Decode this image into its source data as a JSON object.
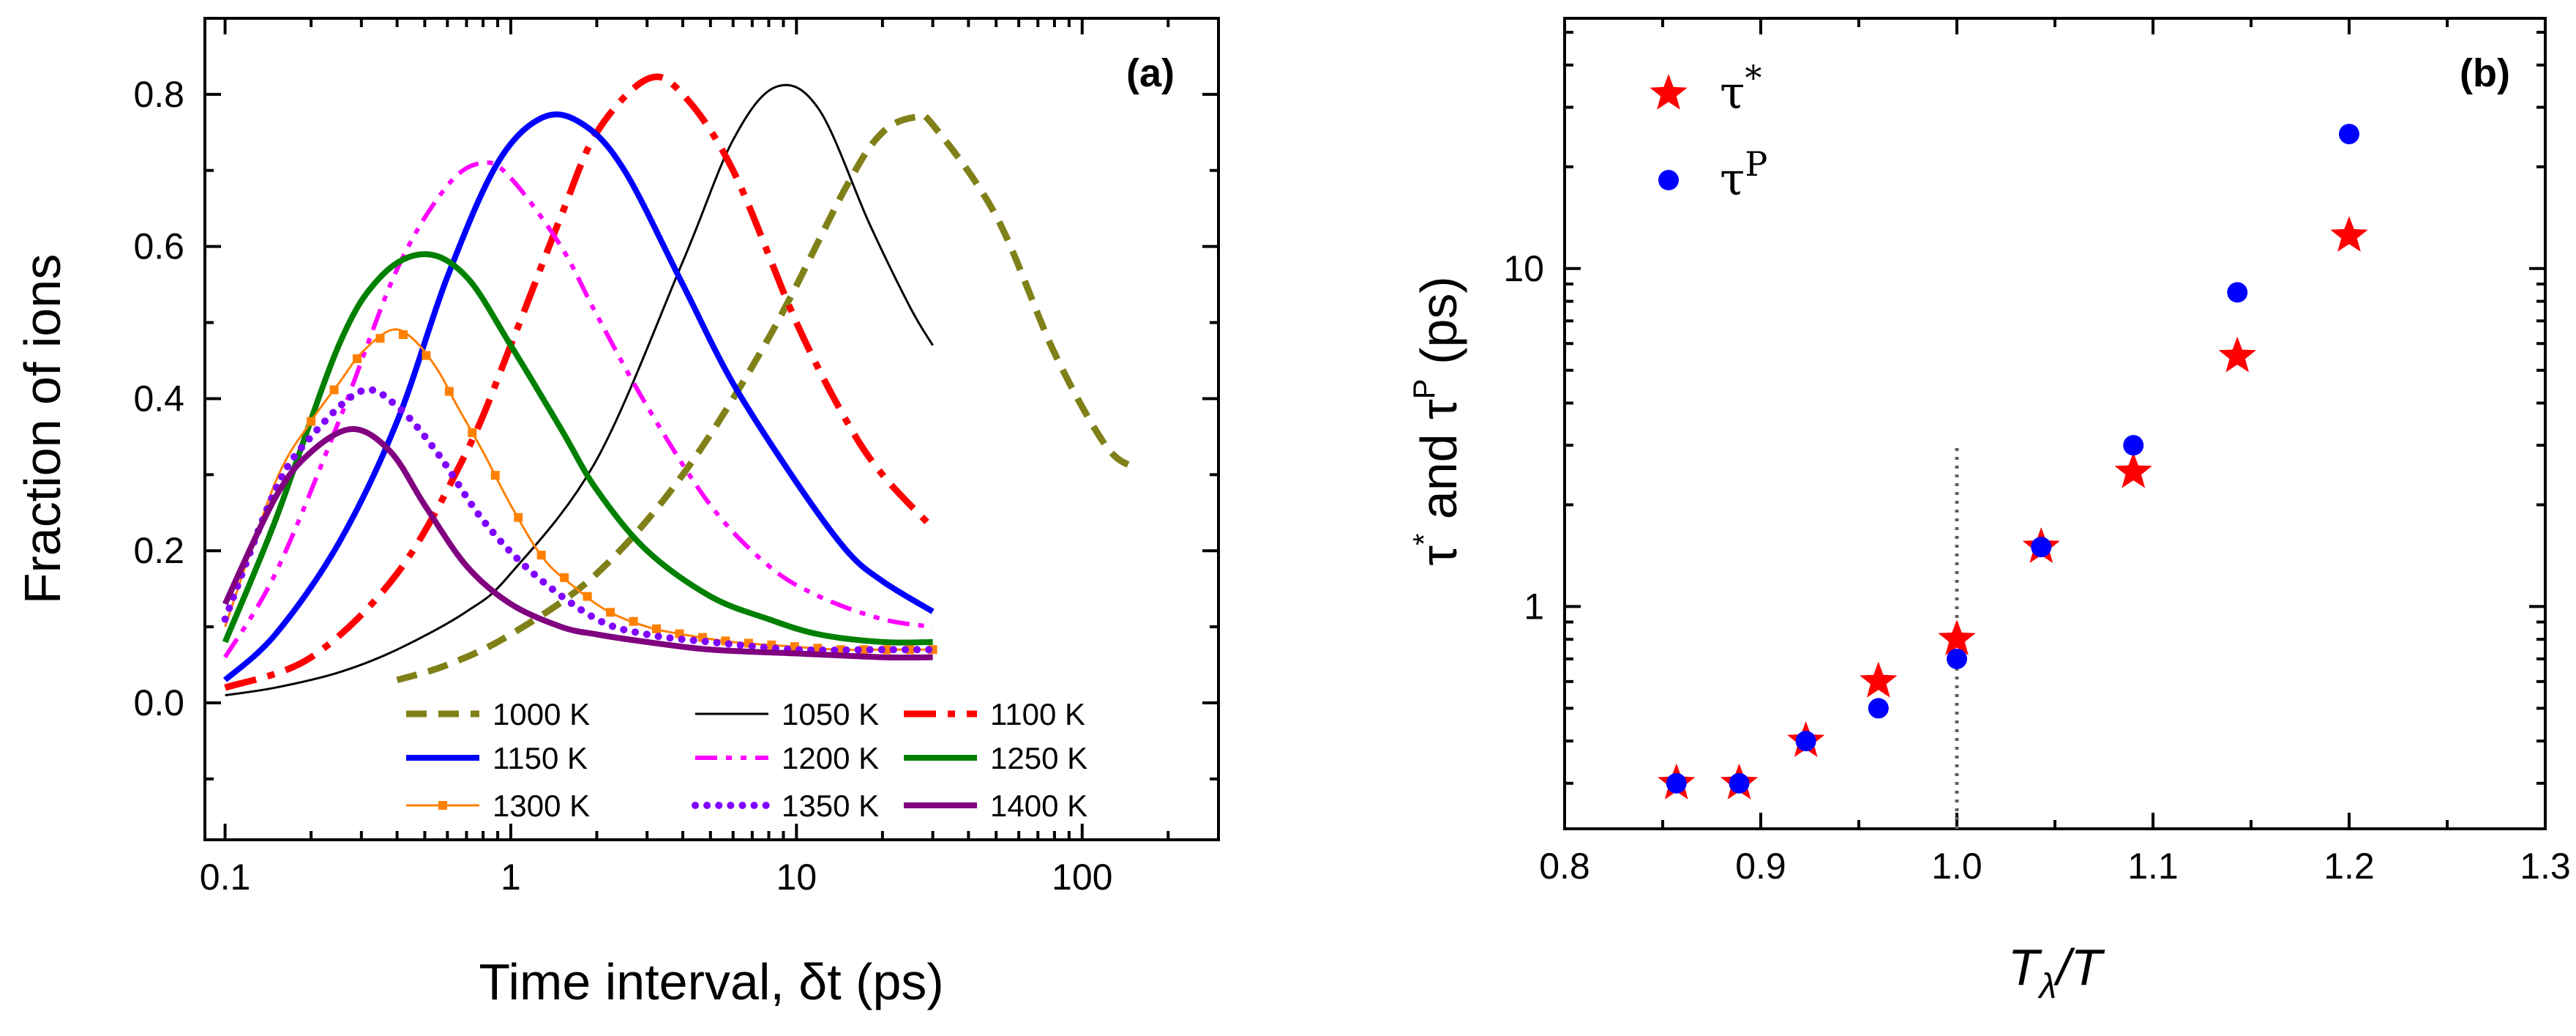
{
  "chart_data": [
    {
      "panel": "(a)",
      "type": "line",
      "xlabel": "Time interval, δt (ps)",
      "ylabel": "Fraction of ions",
      "xscale": "log",
      "xlim": [
        0.085,
        300
      ],
      "ylim": [
        -0.18,
        0.9
      ],
      "xticks": [
        0.1,
        1,
        10,
        100
      ],
      "xtick_labels": [
        "0.1",
        "1",
        "10",
        "100"
      ],
      "yticks": [
        0.0,
        0.2,
        0.4,
        0.6,
        0.8
      ],
      "ytick_labels": [
        "0.0",
        "0.2",
        "0.4",
        "0.6",
        "0.8"
      ],
      "legend_position": "bottom-right",
      "series": [
        {
          "name": "1000 K",
          "color": "#808019",
          "style": "dash",
          "x": [
            0.4,
            0.6,
            1,
            2,
            4,
            8,
            15,
            20,
            26,
            30,
            50,
            80,
            120,
            150
          ],
          "y": [
            0.03,
            0.05,
            0.09,
            0.17,
            0.3,
            0.48,
            0.68,
            0.75,
            0.77,
            0.76,
            0.64,
            0.46,
            0.34,
            0.31
          ]
        },
        {
          "name": "1050 K",
          "color": "#000000",
          "style": "thin",
          "x": [
            0.1,
            0.15,
            0.25,
            0.4,
            0.7,
            1,
            2,
            4,
            6,
            8.5,
            12,
            18,
            25,
            30
          ],
          "y": [
            0.01,
            0.02,
            0.04,
            0.07,
            0.12,
            0.17,
            0.32,
            0.58,
            0.74,
            0.81,
            0.78,
            0.63,
            0.52,
            0.47
          ]
        },
        {
          "name": "1100 K",
          "color": "#ff0000",
          "style": "dashdot",
          "x": [
            0.1,
            0.2,
            0.4,
            0.7,
            1,
            1.5,
            2,
            3,
            4,
            6,
            10,
            15,
            20,
            30
          ],
          "y": [
            0.02,
            0.06,
            0.17,
            0.33,
            0.47,
            0.64,
            0.75,
            0.82,
            0.8,
            0.7,
            0.5,
            0.37,
            0.3,
            0.23
          ]
        },
        {
          "name": "1150 K",
          "color": "#0000ff",
          "style": "solid",
          "x": [
            0.1,
            0.15,
            0.25,
            0.4,
            0.6,
            0.9,
            1.3,
            1.8,
            2.5,
            4,
            6,
            10,
            15,
            20,
            30
          ],
          "y": [
            0.03,
            0.09,
            0.21,
            0.37,
            0.56,
            0.71,
            0.77,
            0.76,
            0.7,
            0.55,
            0.42,
            0.29,
            0.2,
            0.16,
            0.12
          ]
        },
        {
          "name": "1200 K",
          "color": "#ff00ff",
          "style": "dashdotdot",
          "x": [
            0.1,
            0.15,
            0.25,
            0.4,
            0.6,
            0.8,
            1,
            1.5,
            2,
            3,
            5,
            8,
            12,
            20,
            30
          ],
          "y": [
            0.06,
            0.17,
            0.37,
            0.57,
            0.68,
            0.71,
            0.69,
            0.6,
            0.51,
            0.39,
            0.26,
            0.18,
            0.14,
            0.11,
            0.1
          ]
        },
        {
          "name": "1250 K",
          "color": "#008000",
          "style": "solid",
          "x": [
            0.1,
            0.15,
            0.25,
            0.35,
            0.5,
            0.7,
            1,
            1.5,
            2,
            3,
            5,
            8,
            12,
            20,
            30
          ],
          "y": [
            0.08,
            0.24,
            0.47,
            0.56,
            0.59,
            0.56,
            0.47,
            0.36,
            0.28,
            0.2,
            0.14,
            0.11,
            0.09,
            0.08,
            0.08
          ]
        },
        {
          "name": "1300 K",
          "color": "#ff8000",
          "style": "solid-square",
          "x": [
            0.1,
            0.15,
            0.2,
            0.25,
            0.3,
            0.38,
            0.45,
            0.55,
            0.65,
            0.8,
            1,
            1.3,
            1.7,
            2.2,
            3,
            4,
            6,
            9,
            14,
            20,
            30
          ],
          "y": [
            0.1,
            0.29,
            0.37,
            0.42,
            0.46,
            0.49,
            0.48,
            0.44,
            0.39,
            0.33,
            0.26,
            0.19,
            0.15,
            0.12,
            0.1,
            0.09,
            0.08,
            0.075,
            0.07,
            0.07,
            0.07
          ]
        },
        {
          "name": "1350 K",
          "color": "#8000ff",
          "style": "dot",
          "x": [
            0.1,
            0.15,
            0.2,
            0.3,
            0.4,
            0.55,
            0.8,
            1.2,
            2,
            3,
            5,
            10,
            20,
            30
          ],
          "y": [
            0.11,
            0.28,
            0.35,
            0.41,
            0.39,
            0.33,
            0.24,
            0.17,
            0.11,
            0.09,
            0.08,
            0.07,
            0.07,
            0.07
          ]
        },
        {
          "name": "1400 K",
          "color": "#800080",
          "style": "solid",
          "x": [
            0.1,
            0.15,
            0.2,
            0.28,
            0.38,
            0.5,
            0.7,
            1,
            1.5,
            2,
            3,
            5,
            10,
            20,
            30
          ],
          "y": [
            0.13,
            0.27,
            0.33,
            0.36,
            0.33,
            0.26,
            0.18,
            0.13,
            0.1,
            0.09,
            0.08,
            0.07,
            0.065,
            0.06,
            0.06
          ]
        }
      ]
    },
    {
      "panel": "(b)",
      "type": "scatter",
      "xlabel_main": "T",
      "xlabel_sub": "λ",
      "xlabel_tail": "/T",
      "ylabel_parts": [
        "τ",
        "*",
        " and ",
        "τ",
        "P",
        " (ps)"
      ],
      "yscale": "log",
      "xlim": [
        0.8,
        1.3
      ],
      "ylim": [
        0.22,
        55
      ],
      "xticks": [
        0.8,
        0.9,
        1.0,
        1.1,
        1.2,
        1.3
      ],
      "xtick_labels": [
        "0.8",
        "0.9",
        "1.0",
        "1.1",
        "1.2",
        "1.3"
      ],
      "yticks": [
        1,
        10
      ],
      "ytick_labels": [
        "1",
        "10"
      ],
      "legend_position": "top-left",
      "vline": {
        "x": 1.0,
        "ymax": 3.0,
        "color": "#606060",
        "style": "dotted"
      },
      "series": [
        {
          "name": "τ*",
          "label_main": "τ",
          "label_sup": "*",
          "marker": "star",
          "color": "#ff0000",
          "x": [
            0.857,
            0.889,
            0.923,
            0.96,
            1.0,
            1.043,
            1.09,
            1.143,
            1.2
          ],
          "y": [
            0.3,
            0.3,
            0.4,
            0.6,
            0.8,
            1.5,
            2.5,
            5.5,
            12.5
          ]
        },
        {
          "name": "τP",
          "label_main": "τ",
          "label_sup": "P",
          "marker": "circle",
          "color": "#0000ff",
          "x": [
            0.857,
            0.889,
            0.923,
            0.96,
            1.0,
            1.043,
            1.09,
            1.143,
            1.2
          ],
          "y": [
            0.3,
            0.3,
            0.4,
            0.5,
            0.7,
            1.5,
            3.0,
            8.5,
            25
          ]
        }
      ]
    }
  ]
}
